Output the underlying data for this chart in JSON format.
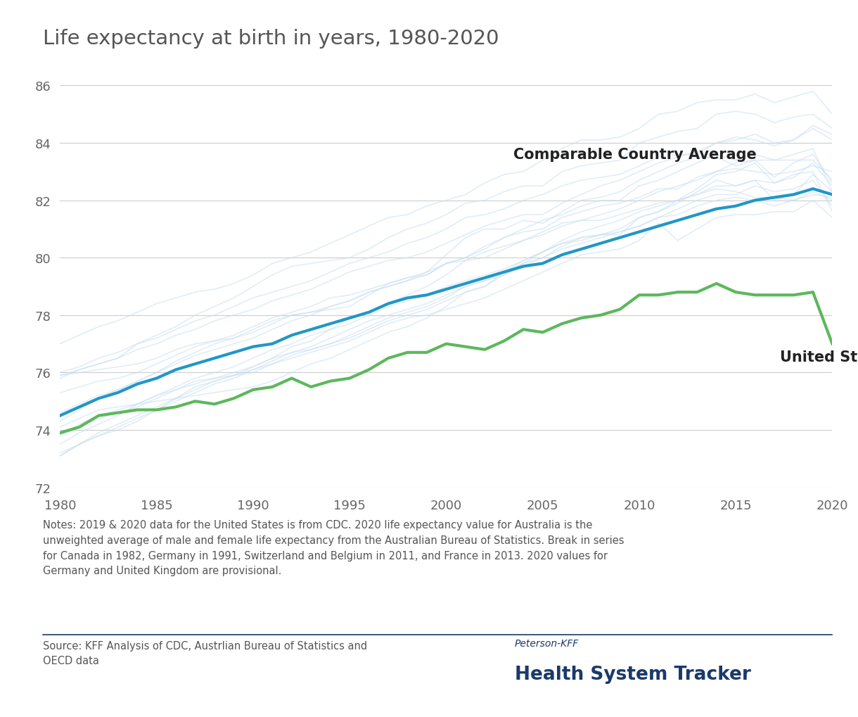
{
  "title": "Life expectancy at birth in years, 1980-2020",
  "title_fontsize": 21,
  "title_color": "#555555",
  "background_color": "#ffffff",
  "years": [
    1980,
    1981,
    1982,
    1983,
    1984,
    1985,
    1986,
    1987,
    1988,
    1989,
    1990,
    1991,
    1992,
    1993,
    1994,
    1995,
    1996,
    1997,
    1998,
    1999,
    2000,
    2001,
    2002,
    2003,
    2004,
    2005,
    2006,
    2007,
    2008,
    2009,
    2010,
    2011,
    2012,
    2013,
    2014,
    2015,
    2016,
    2017,
    2018,
    2019,
    2020
  ],
  "us_data": [
    73.9,
    74.1,
    74.5,
    74.6,
    74.7,
    74.7,
    74.8,
    75.0,
    74.9,
    75.1,
    75.4,
    75.5,
    75.8,
    75.5,
    75.7,
    75.8,
    76.1,
    76.5,
    76.7,
    76.7,
    77.0,
    76.9,
    76.8,
    77.1,
    77.5,
    77.4,
    77.7,
    77.9,
    78.0,
    78.2,
    78.7,
    78.7,
    78.8,
    78.8,
    79.1,
    78.8,
    78.7,
    78.7,
    78.7,
    78.8,
    77.0
  ],
  "comparable_avg": [
    74.5,
    74.8,
    75.1,
    75.3,
    75.6,
    75.8,
    76.1,
    76.3,
    76.5,
    76.7,
    76.9,
    77.0,
    77.3,
    77.5,
    77.7,
    77.9,
    78.1,
    78.4,
    78.6,
    78.7,
    78.9,
    79.1,
    79.3,
    79.5,
    79.7,
    79.8,
    80.1,
    80.3,
    80.5,
    80.7,
    80.9,
    81.1,
    81.3,
    81.5,
    81.7,
    81.8,
    82.0,
    82.1,
    82.2,
    82.4,
    82.2
  ],
  "comparable_countries": {
    "Australia": [
      74.6,
      74.9,
      75.2,
      75.4,
      75.7,
      76.0,
      76.3,
      76.6,
      76.8,
      77.0,
      77.2,
      77.5,
      77.8,
      78.0,
      78.3,
      78.5,
      78.8,
      79.0,
      79.2,
      79.5,
      79.8,
      80.0,
      80.4,
      80.7,
      80.9,
      81.0,
      81.4,
      81.6,
      81.8,
      81.9,
      82.1,
      82.4,
      82.4,
      82.8,
      83.0,
      83.1,
      83.0,
      82.9,
      83.0,
      83.2,
      83.0
    ],
    "Austria": [
      73.1,
      73.5,
      73.9,
      74.2,
      74.5,
      74.8,
      75.1,
      75.4,
      75.7,
      75.9,
      76.2,
      76.5,
      76.7,
      76.9,
      77.2,
      77.5,
      77.8,
      78.0,
      78.2,
      78.4,
      78.7,
      79.0,
      79.2,
      79.4,
      79.7,
      80.0,
      80.4,
      80.7,
      80.8,
      80.9,
      81.1,
      81.4,
      81.5,
      81.8,
      82.0,
      82.1,
      82.0,
      81.8,
      82.0,
      82.3,
      82.0
    ],
    "Belgium": [
      73.2,
      73.5,
      73.8,
      74.1,
      74.4,
      74.7,
      75.0,
      75.3,
      75.6,
      75.8,
      76.1,
      76.3,
      76.5,
      76.7,
      76.9,
      77.1,
      77.4,
      77.7,
      77.9,
      78.0,
      78.2,
      78.4,
      78.6,
      78.9,
      79.2,
      79.5,
      79.8,
      80.1,
      80.2,
      80.3,
      80.6,
      81.2,
      80.6,
      81.0,
      81.4,
      81.5,
      81.5,
      81.6,
      81.6,
      82.0,
      81.4
    ],
    "Canada": [
      75.3,
      75.5,
      75.7,
      75.8,
      76.0,
      76.3,
      76.6,
      76.9,
      77.1,
      77.3,
      77.6,
      77.9,
      78.1,
      78.3,
      78.6,
      78.7,
      78.9,
      79.1,
      79.3,
      79.4,
      79.8,
      79.9,
      80.0,
      80.3,
      80.6,
      80.8,
      81.1,
      81.3,
      81.3,
      81.5,
      81.7,
      81.9,
      82.0,
      82.2,
      82.4,
      82.3,
      82.1,
      82.1,
      82.0,
      82.2,
      82.1
    ],
    "Denmark": [
      74.1,
      74.4,
      74.7,
      74.8,
      74.9,
      75.0,
      75.1,
      75.2,
      75.3,
      75.4,
      75.5,
      75.7,
      76.0,
      76.3,
      76.5,
      76.8,
      77.1,
      77.4,
      77.6,
      77.9,
      78.3,
      78.8,
      79.0,
      79.5,
      79.9,
      80.2,
      80.5,
      80.6,
      80.8,
      80.8,
      81.4,
      81.6,
      81.9,
      82.3,
      82.7,
      82.5,
      82.7,
      82.0,
      82.2,
      82.9,
      82.3
    ],
    "Finland": [
      73.5,
      73.9,
      74.2,
      74.5,
      74.9,
      75.2,
      75.4,
      75.7,
      75.8,
      75.9,
      76.0,
      76.3,
      76.6,
      76.8,
      77.0,
      77.2,
      77.5,
      77.8,
      78.0,
      78.2,
      78.5,
      78.8,
      79.0,
      79.4,
      79.8,
      80.2,
      80.5,
      80.7,
      80.8,
      81.0,
      81.4,
      81.6,
      82.0,
      82.4,
      82.9,
      83.0,
      83.3,
      82.6,
      82.8,
      83.3,
      82.5
    ],
    "France": [
      74.3,
      74.7,
      75.1,
      75.4,
      75.7,
      76.0,
      76.4,
      76.7,
      77.0,
      77.2,
      77.5,
      77.8,
      78.0,
      78.1,
      78.3,
      78.5,
      78.8,
      79.0,
      79.2,
      79.4,
      79.8,
      80.0,
      80.3,
      80.7,
      81.0,
      81.3,
      81.5,
      81.8,
      82.0,
      82.0,
      82.5,
      82.7,
      83.0,
      83.3,
      83.6,
      83.4,
      83.6,
      83.4,
      83.6,
      83.8,
      82.3
    ],
    "Germany": [
      73.1,
      73.5,
      73.8,
      74.0,
      74.3,
      74.7,
      75.1,
      75.5,
      75.7,
      75.9,
      76.1,
      76.4,
      76.7,
      76.8,
      77.0,
      77.3,
      77.6,
      77.9,
      78.1,
      78.3,
      78.6,
      79.0,
      79.2,
      79.5,
      79.8,
      80.0,
      80.3,
      80.5,
      80.7,
      80.9,
      81.1,
      81.4,
      81.7,
      82.0,
      82.2,
      82.2,
      82.5,
      82.3,
      82.4,
      82.7,
      81.8
    ],
    "Japan": [
      75.9,
      76.1,
      76.3,
      76.5,
      77.0,
      77.3,
      77.6,
      78.0,
      78.3,
      78.6,
      79.0,
      79.4,
      79.7,
      79.8,
      79.9,
      80.0,
      80.3,
      80.7,
      81.0,
      81.2,
      81.5,
      81.9,
      82.0,
      82.3,
      82.5,
      82.5,
      83.0,
      83.2,
      83.3,
      83.4,
      84.0,
      84.2,
      84.4,
      84.5,
      85.0,
      85.1,
      85.0,
      84.7,
      84.9,
      85.0,
      84.5
    ],
    "Netherlands": [
      75.9,
      76.0,
      76.1,
      76.2,
      76.3,
      76.5,
      76.8,
      77.0,
      77.1,
      77.2,
      77.4,
      77.7,
      78.0,
      78.1,
      78.2,
      78.3,
      78.7,
      79.1,
      79.3,
      79.5,
      80.1,
      80.7,
      81.0,
      81.0,
      81.3,
      81.2,
      81.6,
      82.0,
      82.1,
      82.3,
      82.7,
      83.0,
      83.3,
      83.5,
      83.5,
      83.2,
      83.4,
      82.8,
      83.3,
      83.6,
      82.6
    ],
    "New Zealand": [
      73.8,
      74.1,
      74.4,
      74.6,
      74.8,
      75.1,
      75.4,
      75.6,
      75.8,
      76.0,
      76.2,
      76.5,
      76.9,
      77.1,
      77.5,
      77.9,
      78.1,
      78.4,
      78.7,
      79.0,
      79.4,
      79.9,
      80.2,
      80.4,
      80.6,
      80.9,
      81.2,
      81.3,
      81.5,
      81.7,
      82.0,
      82.3,
      82.5,
      82.7,
      83.0,
      83.3,
      83.4,
      83.4,
      83.4,
      83.4,
      82.7
    ],
    "Norway": [
      76.0,
      76.2,
      76.5,
      76.7,
      77.0,
      77.2,
      77.5,
      77.8,
      78.0,
      78.3,
      78.6,
      78.8,
      79.0,
      79.2,
      79.5,
      79.8,
      80.0,
      80.2,
      80.5,
      80.7,
      81.0,
      81.4,
      81.5,
      81.7,
      82.0,
      82.2,
      82.5,
      82.7,
      82.8,
      82.9,
      83.2,
      83.5,
      83.6,
      83.6,
      84.0,
      84.1,
      84.3,
      84.0,
      84.1,
      84.6,
      84.3
    ],
    "Sweden": [
      75.8,
      76.1,
      76.3,
      76.5,
      76.8,
      77.0,
      77.3,
      77.5,
      77.8,
      78.0,
      78.2,
      78.5,
      78.7,
      78.9,
      79.2,
      79.5,
      79.7,
      79.9,
      80.0,
      80.2,
      80.5,
      80.8,
      81.1,
      81.3,
      81.5,
      81.5,
      81.9,
      82.2,
      82.5,
      82.7,
      83.0,
      83.3,
      83.5,
      83.7,
      84.0,
      84.2,
      84.1,
      83.9,
      84.1,
      84.5,
      84.1
    ],
    "Switzerland": [
      77.0,
      77.3,
      77.6,
      77.8,
      78.1,
      78.4,
      78.6,
      78.8,
      78.9,
      79.1,
      79.4,
      79.8,
      80.0,
      80.2,
      80.5,
      80.8,
      81.1,
      81.4,
      81.5,
      81.8,
      82.0,
      82.2,
      82.6,
      82.9,
      83.0,
      83.4,
      83.8,
      84.1,
      84.1,
      84.2,
      84.5,
      85.0,
      85.1,
      85.4,
      85.5,
      85.5,
      85.7,
      85.4,
      85.6,
      85.8,
      85.0
    ],
    "United Kingdom": [
      73.8,
      74.2,
      74.5,
      74.7,
      74.9,
      75.2,
      75.5,
      75.8,
      76.0,
      76.2,
      76.5,
      76.8,
      77.0,
      77.3,
      77.5,
      77.7,
      78.0,
      78.3,
      78.5,
      78.7,
      79.0,
      79.2,
      79.4,
      79.6,
      79.9,
      80.2,
      80.6,
      80.9,
      81.1,
      81.3,
      81.6,
      81.8,
      82.0,
      82.2,
      82.5,
      82.5,
      82.7,
      82.6,
      82.9,
      83.0,
      81.6
    ]
  },
  "us_color": "#5cb85c",
  "avg_color": "#2196c8",
  "country_color": "#c8dff0",
  "grid_color": "#cccccc",
  "ylim": [
    72,
    86
  ],
  "yticks": [
    72,
    74,
    76,
    78,
    80,
    82,
    84,
    86
  ],
  "xlim": [
    1980,
    2020
  ],
  "xticks": [
    1980,
    1985,
    1990,
    1995,
    2000,
    2005,
    2010,
    2015,
    2020
  ],
  "label_avg": "Comparable Country Average",
  "label_us": "United States",
  "notes_text": "Notes: 2019 & 2020 data for the United States is from CDC. 2020 life expectancy value for Australia is the\nunweighted average of male and female life expectancy from the Australian Bureau of Statistics. Break in series\nfor Canada in 1982, Germany in 1991, Switzerland and Belgium in 2011, and France in 2013. 2020 values for\nGermany and United Kingdom are provisional.",
  "source_text": "Source: KFF Analysis of CDC, Austrlian Bureau of Statistics and\nOECD data",
  "peterson_text": "Peterson-KFF",
  "tracker_text": "Health System Tracker",
  "divider_color": "#1a3a6b",
  "avg_lw": 3.0,
  "us_lw": 3.0,
  "country_lw": 1.2,
  "country_alpha": 0.55
}
